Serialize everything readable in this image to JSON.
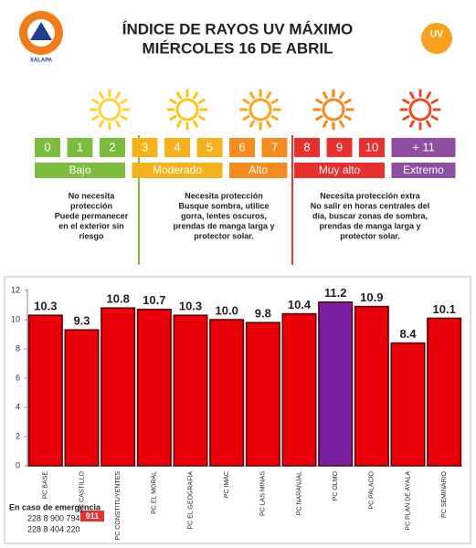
{
  "logo": {
    "ring": "PROTECCIÓN CIVIL",
    "city": "XALAPA"
  },
  "header": {
    "title": "ÍNDICE DE RAYOS UV MÁXIMO",
    "subtitle": "MIÉRCOLES 16 DE ABRIL",
    "badge": "UV"
  },
  "uv_scale": {
    "bands": [
      {
        "label": "Bajo",
        "color": "#7cbd3e",
        "levels": [
          "0",
          "1",
          "2"
        ]
      },
      {
        "label": "Moderado",
        "color": "#f6b21c",
        "levels": [
          "3",
          "4",
          "5"
        ]
      },
      {
        "label": "Alto",
        "color": "#f68b1f",
        "levels": [
          "6",
          "7"
        ]
      },
      {
        "label": "Muy alto",
        "color": "#e8312f",
        "levels": [
          "8",
          "9",
          "10"
        ]
      },
      {
        "label": "Extremo",
        "color": "#8e4fa0",
        "levels": [
          "+ 11"
        ]
      }
    ]
  },
  "recommendations": [
    {
      "lines": [
        "No necesita",
        "protección",
        "Puede permanecer",
        "en el exterior sin",
        "riesgo"
      ]
    },
    {
      "lines": [
        "Necesita protección",
        "Busque sombra, utilice",
        "gorra, lentes oscuros,",
        "prendas de manga larga y",
        "protector solar."
      ]
    },
    {
      "lines": [
        "Necesita protección extra",
        "No salir en horas centrales del",
        "día, buscar zonas de sombra,",
        "prendas de manga larga y",
        "protector solar."
      ]
    }
  ],
  "chart_data": {
    "type": "bar",
    "categories": [
      "PC BASE",
      "PC CASTILLO",
      "PC CONSTITUYENTES",
      "PC EL MORAL",
      "PC EL GEOGRAFIA",
      "PC IMAC",
      "PC LAS MINAS",
      "PC NARANJAL",
      "PC OLMO",
      "PC PALACIO",
      "PC PLAN DE AYALA",
      "PC SEMINARIO"
    ],
    "values": [
      10.3,
      9.3,
      10.8,
      10.7,
      10.3,
      10.0,
      9.8,
      10.4,
      11.2,
      10.9,
      8.4,
      10.1
    ],
    "value_labels": [
      "10.3",
      "9.3",
      "10.8",
      "10.7",
      "10.3",
      "10.0",
      "9.8",
      "10.4",
      "11.2",
      "10.9",
      "8.4",
      "10.1"
    ],
    "colors": [
      "#e8000b",
      "#e8000b",
      "#e8000b",
      "#e8000b",
      "#e8000b",
      "#e8000b",
      "#e8000b",
      "#e8000b",
      "#7b1fa2",
      "#e8000b",
      "#e8000b",
      "#e8000b"
    ],
    "ylim": [
      0,
      12
    ],
    "yticks": [
      0,
      2,
      4,
      6,
      8,
      10,
      12
    ],
    "grid": false
  },
  "footer": {
    "title": "En caso de emergencia",
    "phones": [
      "228 8 900 794",
      "228 8 404 220"
    ],
    "badge": "911"
  }
}
